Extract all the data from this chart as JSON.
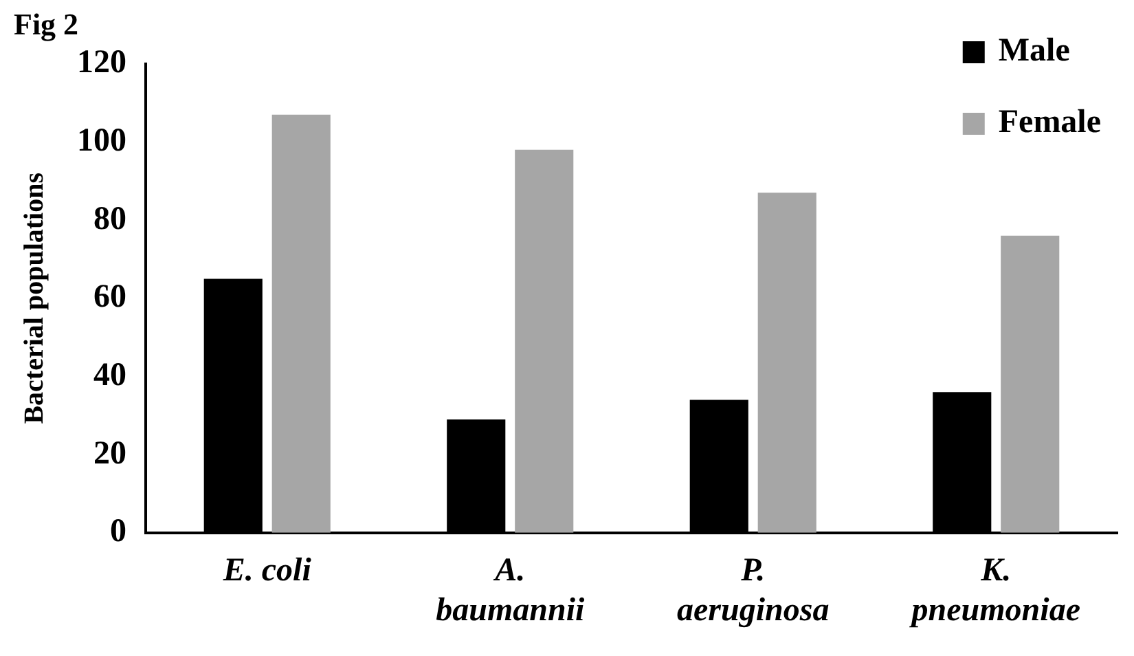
{
  "chart_data": {
    "type": "bar",
    "title": "Fig 2",
    "ylabel": "Bacterial populations",
    "categories": [
      "E. coli",
      "A. baumannii",
      "P. aeruginosa",
      "K. pneumoniae"
    ],
    "series": [
      {
        "name": "Male",
        "color": "#000000",
        "values": [
          65,
          29,
          34,
          36
        ]
      },
      {
        "name": "Female",
        "color": "#a6a6a6",
        "values": [
          107,
          98,
          87,
          76
        ]
      }
    ],
    "ylim": [
      0,
      120
    ],
    "yticks": [
      0,
      20,
      40,
      60,
      80,
      100,
      120
    ],
    "grid": false,
    "legend": "top right"
  }
}
